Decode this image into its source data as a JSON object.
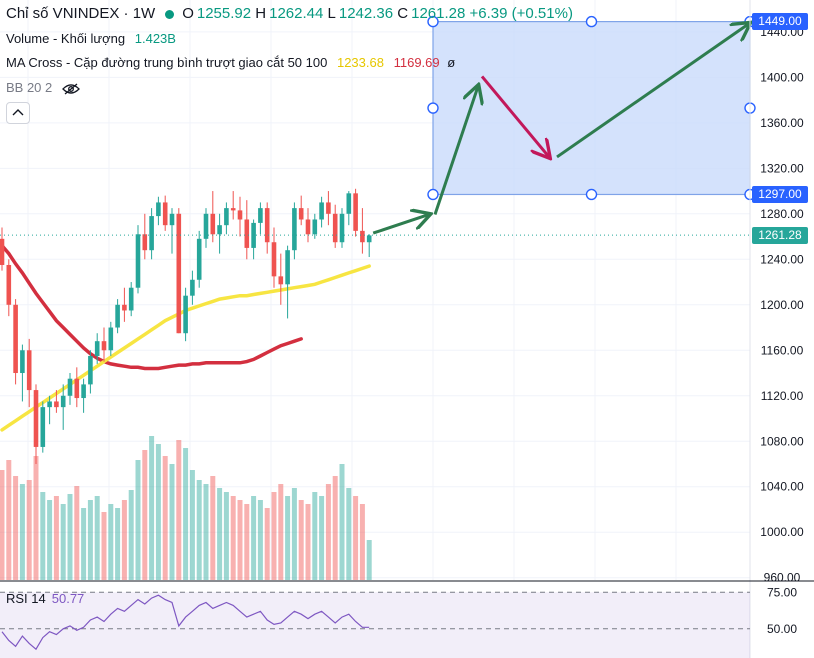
{
  "legend": {
    "title": "Chỉ số VNINDEX · 1W",
    "ohlc": [
      {
        "k": "O",
        "v": "1255.92"
      },
      {
        "k": "H",
        "v": "1262.44"
      },
      {
        "k": "L",
        "v": "1242.36"
      },
      {
        "k": "C",
        "v": "1261.28"
      }
    ],
    "change": "+6.39 (+0.51%)",
    "volume_label": "Volume - Khối lượng",
    "volume_value": "1.423B",
    "ma_label": "MA Cross - Cặp đường trung bình trượt giao cắt 50 100",
    "ma50_value": "1233.68",
    "ma100_value": "1169.69",
    "ma_suffix": "ø",
    "bb_label": "BB 20 2"
  },
  "rsi": {
    "label": "RSI 14",
    "value": "50.77"
  },
  "colors": {
    "up": "#26a69a",
    "down": "#ef5350",
    "ma50": "#f7e542",
    "ma100": "#d32f3f",
    "box_fill": "#c9dbfb",
    "box_stroke": "#7fa3e8",
    "arrow_green": "#2e7d4f",
    "arrow_red": "#c2185b",
    "price_badge": "#26a69a",
    "axis_badge": "#2962ff",
    "rsi": "#7e57c2"
  },
  "chart_data": {
    "type": "candlestick",
    "price_axis": {
      "ticks": [
        "1440.00",
        "1400.00",
        "1360.00",
        "1320.00",
        "1280.00",
        "1240.00",
        "1200.00",
        "1160.00",
        "1120.00",
        "1080.00",
        "1040.00",
        "1000.00",
        "960.00"
      ],
      "ylim": [
        958,
        1468
      ]
    },
    "last_price": "1261.28",
    "ohlc": [
      [
        1258,
        1268,
        1230,
        1235
      ],
      [
        1235,
        1240,
        1190,
        1200
      ],
      [
        1200,
        1205,
        1130,
        1140
      ],
      [
        1140,
        1165,
        1115,
        1160
      ],
      [
        1160,
        1170,
        1110,
        1125
      ],
      [
        1125,
        1130,
        1060,
        1075
      ],
      [
        1075,
        1115,
        1070,
        1110
      ],
      [
        1110,
        1120,
        1095,
        1115
      ],
      [
        1115,
        1125,
        1105,
        1110
      ],
      [
        1110,
        1130,
        1090,
        1120
      ],
      [
        1120,
        1140,
        1112,
        1135
      ],
      [
        1135,
        1145,
        1110,
        1118
      ],
      [
        1118,
        1135,
        1105,
        1130
      ],
      [
        1130,
        1160,
        1122,
        1155
      ],
      [
        1155,
        1175,
        1148,
        1168
      ],
      [
        1168,
        1180,
        1150,
        1160
      ],
      [
        1160,
        1185,
        1155,
        1180
      ],
      [
        1180,
        1205,
        1175,
        1200
      ],
      [
        1200,
        1215,
        1185,
        1195
      ],
      [
        1195,
        1220,
        1190,
        1215
      ],
      [
        1215,
        1270,
        1210,
        1262
      ],
      [
        1262,
        1280,
        1240,
        1248
      ],
      [
        1248,
        1285,
        1240,
        1278
      ],
      [
        1278,
        1295,
        1270,
        1290
      ],
      [
        1290,
        1296,
        1265,
        1270
      ],
      [
        1270,
        1285,
        1245,
        1280
      ],
      [
        1280,
        1285,
        1175,
        1175
      ],
      [
        1175,
        1215,
        1168,
        1208
      ],
      [
        1208,
        1230,
        1200,
        1222
      ],
      [
        1222,
        1265,
        1215,
        1258
      ],
      [
        1258,
        1285,
        1250,
        1280
      ],
      [
        1280,
        1300,
        1255,
        1262
      ],
      [
        1262,
        1280,
        1245,
        1270
      ],
      [
        1270,
        1290,
        1262,
        1285
      ],
      [
        1285,
        1300,
        1275,
        1283
      ],
      [
        1283,
        1295,
        1260,
        1275
      ],
      [
        1275,
        1292,
        1240,
        1250
      ],
      [
        1250,
        1275,
        1240,
        1272
      ],
      [
        1272,
        1290,
        1262,
        1285
      ],
      [
        1285,
        1290,
        1245,
        1255
      ],
      [
        1255,
        1268,
        1215,
        1225
      ],
      [
        1225,
        1245,
        1200,
        1218
      ],
      [
        1218,
        1252,
        1188,
        1248
      ],
      [
        1248,
        1290,
        1240,
        1285
      ],
      [
        1285,
        1296,
        1270,
        1275
      ],
      [
        1275,
        1285,
        1255,
        1262
      ],
      [
        1262,
        1280,
        1258,
        1275
      ],
      [
        1275,
        1295,
        1268,
        1290
      ],
      [
        1290,
        1300,
        1270,
        1280
      ],
      [
        1280,
        1288,
        1250,
        1255
      ],
      [
        1255,
        1285,
        1250,
        1280
      ],
      [
        1280,
        1300,
        1270,
        1298
      ],
      [
        1298,
        1302,
        1260,
        1265
      ],
      [
        1265,
        1285,
        1245,
        1255
      ],
      [
        1255,
        1262,
        1242,
        1261
      ]
    ],
    "volume": [
      0.55,
      0.6,
      0.52,
      0.48,
      0.5,
      0.62,
      0.44,
      0.4,
      0.42,
      0.38,
      0.43,
      0.47,
      0.36,
      0.4,
      0.42,
      0.34,
      0.38,
      0.36,
      0.4,
      0.45,
      0.6,
      0.65,
      0.72,
      0.68,
      0.62,
      0.58,
      0.7,
      0.66,
      0.55,
      0.5,
      0.48,
      0.52,
      0.46,
      0.44,
      0.42,
      0.4,
      0.38,
      0.42,
      0.4,
      0.36,
      0.44,
      0.48,
      0.42,
      0.46,
      0.4,
      0.38,
      0.44,
      0.42,
      0.48,
      0.52,
      0.58,
      0.46,
      0.42,
      0.38,
      0.2
    ],
    "ma50": [
      1090,
      1094,
      1098,
      1102,
      1106,
      1110,
      1114,
      1118,
      1122,
      1126,
      1130,
      1134,
      1138,
      1142,
      1146,
      1150,
      1154,
      1158,
      1162,
      1166,
      1170,
      1174,
      1178,
      1182,
      1186,
      1189,
      1192,
      1195,
      1197,
      1199,
      1201,
      1203,
      1205,
      1206,
      1207,
      1208,
      1208,
      1209,
      1210,
      1211,
      1212,
      1213,
      1214,
      1215,
      1216,
      1217,
      1218,
      1220,
      1222,
      1224,
      1226,
      1228,
      1230,
      1232,
      1234
    ],
    "ma100": [
      1252,
      1245,
      1236,
      1228,
      1219,
      1210,
      1202,
      1194,
      1186,
      1180,
      1174,
      1168,
      1162,
      1157,
      1153,
      1150,
      1148,
      1147,
      1146,
      1145,
      1145,
      1144,
      1144,
      1144,
      1145,
      1146,
      1147,
      1147,
      1148,
      1148,
      1149,
      1149,
      1149,
      1149,
      1149,
      1149,
      1150,
      1152,
      1155,
      1158,
      1161,
      1164,
      1166,
      1168,
      1170
    ],
    "rsi_series": [
      48,
      42,
      38,
      45,
      40,
      36,
      44,
      48,
      46,
      50,
      52,
      49,
      51,
      56,
      58,
      55,
      60,
      64,
      62,
      66,
      70,
      67,
      71,
      73,
      70,
      68,
      52,
      58,
      62,
      66,
      68,
      64,
      66,
      68,
      66,
      62,
      58,
      60,
      62,
      56,
      53,
      54,
      58,
      62,
      60,
      57,
      60,
      62,
      58,
      54,
      58,
      60,
      55,
      51,
      51
    ],
    "rsi_axis": {
      "ticks": [
        "75.00",
        "50.00"
      ],
      "ylim": [
        30,
        80
      ]
    },
    "target_zone": {
      "top": "1449.00",
      "bottom": "1297.00"
    },
    "forecast_path": [
      {
        "p": 1297,
        "dx": 0
      },
      {
        "p": 1392,
        "dx": 45
      },
      {
        "p": 1330,
        "dx": 120
      },
      {
        "p": 1449,
        "dx": 318
      }
    ]
  }
}
